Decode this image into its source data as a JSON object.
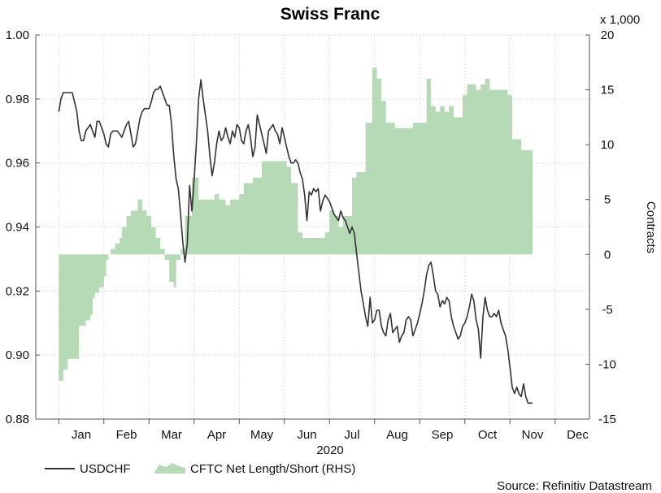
{
  "chart_data": {
    "type": "line",
    "title": "Swiss Franc",
    "year_label": "2020",
    "right_axis_multiplier": "x 1,000",
    "right_axis_label": "Contracts",
    "source": "Source: Refinitiv Datastream",
    "month_labels": [
      "Jan",
      "Feb",
      "Mar",
      "Apr",
      "May",
      "Jun",
      "Jul",
      "Aug",
      "Sep",
      "Oct",
      "Nov",
      "Dec"
    ],
    "left_ticks": [
      "0.88",
      "0.90",
      "0.92",
      "0.94",
      "0.96",
      "0.98",
      "1.00"
    ],
    "right_ticks": [
      "-15",
      "-10",
      "-5",
      "0",
      "5",
      "10",
      "15",
      "20"
    ],
    "left_ylim": [
      0.88,
      1.0
    ],
    "right_ylim": [
      -15,
      20
    ],
    "grid": true,
    "legend_position": "bottom-left",
    "series": [
      {
        "name": "USDCHF",
        "axis": "left",
        "color": "#333333",
        "x_unit": "month_index",
        "points": [
          [
            -0.5,
            0.976
          ],
          [
            -0.45,
            0.98
          ],
          [
            -0.4,
            0.982
          ],
          [
            -0.3,
            0.982
          ],
          [
            -0.2,
            0.982
          ],
          [
            -0.1,
            0.976
          ],
          [
            -0.05,
            0.97
          ],
          [
            0.0,
            0.967
          ],
          [
            0.05,
            0.967
          ],
          [
            0.1,
            0.97
          ],
          [
            0.2,
            0.972
          ],
          [
            0.25,
            0.97
          ],
          [
            0.3,
            0.968
          ],
          [
            0.35,
            0.973
          ],
          [
            0.4,
            0.973
          ],
          [
            0.45,
            0.971
          ],
          [
            0.5,
            0.969
          ],
          [
            0.55,
            0.966
          ],
          [
            0.6,
            0.965
          ],
          [
            0.65,
            0.969
          ],
          [
            0.7,
            0.97
          ],
          [
            0.8,
            0.97
          ],
          [
            0.85,
            0.969
          ],
          [
            0.9,
            0.968
          ],
          [
            0.95,
            0.97
          ],
          [
            1.0,
            0.972
          ],
          [
            1.05,
            0.973
          ],
          [
            1.1,
            0.969
          ],
          [
            1.15,
            0.965
          ],
          [
            1.2,
            0.966
          ],
          [
            1.25,
            0.97
          ],
          [
            1.3,
            0.974
          ],
          [
            1.35,
            0.976
          ],
          [
            1.4,
            0.977
          ],
          [
            1.5,
            0.977
          ],
          [
            1.55,
            0.979
          ],
          [
            1.6,
            0.982
          ],
          [
            1.65,
            0.983
          ],
          [
            1.7,
            0.983
          ],
          [
            1.75,
            0.984
          ],
          [
            1.8,
            0.982
          ],
          [
            1.85,
            0.98
          ],
          [
            1.9,
            0.978
          ],
          [
            1.95,
            0.978
          ],
          [
            2.0,
            0.972
          ],
          [
            2.05,
            0.962
          ],
          [
            2.1,
            0.955
          ],
          [
            2.15,
            0.952
          ],
          [
            2.2,
            0.944
          ],
          [
            2.25,
            0.935
          ],
          [
            2.3,
            0.929
          ],
          [
            2.35,
            0.935
          ],
          [
            2.4,
            0.953
          ],
          [
            2.45,
            0.945
          ],
          [
            2.5,
            0.955
          ],
          [
            2.55,
            0.966
          ],
          [
            2.6,
            0.98
          ],
          [
            2.65,
            0.986
          ],
          [
            2.7,
            0.98
          ],
          [
            2.75,
            0.975
          ],
          [
            2.8,
            0.97
          ],
          [
            2.85,
            0.962
          ],
          [
            2.9,
            0.956
          ],
          [
            2.95,
            0.96
          ],
          [
            3.0,
            0.966
          ],
          [
            3.05,
            0.97
          ],
          [
            3.1,
            0.967
          ],
          [
            3.15,
            0.968
          ],
          [
            3.2,
            0.971
          ],
          [
            3.25,
            0.968
          ],
          [
            3.3,
            0.966
          ],
          [
            3.35,
            0.97
          ],
          [
            3.4,
            0.968
          ],
          [
            3.45,
            0.972
          ],
          [
            3.5,
            0.971
          ],
          [
            3.55,
            0.967
          ],
          [
            3.6,
            0.966
          ],
          [
            3.65,
            0.97
          ],
          [
            3.7,
            0.972
          ],
          [
            3.75,
            0.968
          ],
          [
            3.8,
            0.962
          ],
          [
            3.85,
            0.965
          ],
          [
            3.9,
            0.975
          ],
          [
            3.95,
            0.972
          ],
          [
            4.0,
            0.969
          ],
          [
            4.05,
            0.966
          ],
          [
            4.1,
            0.963
          ],
          [
            4.15,
            0.97
          ],
          [
            4.2,
            0.971
          ],
          [
            4.25,
            0.972
          ],
          [
            4.3,
            0.97
          ],
          [
            4.35,
            0.969
          ],
          [
            4.4,
            0.966
          ],
          [
            4.45,
            0.971
          ],
          [
            4.5,
            0.968
          ],
          [
            4.55,
            0.965
          ],
          [
            4.6,
            0.962
          ],
          [
            4.65,
            0.96
          ],
          [
            4.7,
            0.96
          ],
          [
            4.75,
            0.961
          ],
          [
            4.8,
            0.96
          ],
          [
            4.85,
            0.957
          ],
          [
            4.9,
            0.955
          ],
          [
            4.95,
            0.95
          ],
          [
            5.0,
            0.942
          ],
          [
            5.05,
            0.951
          ],
          [
            5.1,
            0.95
          ],
          [
            5.15,
            0.952
          ],
          [
            5.2,
            0.951
          ],
          [
            5.25,
            0.952
          ],
          [
            5.3,
            0.945
          ],
          [
            5.35,
            0.948
          ],
          [
            5.4,
            0.95
          ],
          [
            5.45,
            0.949
          ],
          [
            5.5,
            0.948
          ],
          [
            5.55,
            0.946
          ],
          [
            5.6,
            0.944
          ],
          [
            5.65,
            0.943
          ],
          [
            5.7,
            0.942
          ],
          [
            5.75,
            0.945
          ],
          [
            5.8,
            0.943
          ],
          [
            5.85,
            0.942
          ],
          [
            5.9,
            0.94
          ],
          [
            5.95,
            0.938
          ],
          [
            6.0,
            0.94
          ],
          [
            6.05,
            0.938
          ],
          [
            6.1,
            0.932
          ],
          [
            6.15,
            0.926
          ],
          [
            6.2,
            0.92
          ],
          [
            6.25,
            0.916
          ],
          [
            6.3,
            0.912
          ],
          [
            6.35,
            0.909
          ],
          [
            6.4,
            0.918
          ],
          [
            6.45,
            0.91
          ],
          [
            6.5,
            0.911
          ],
          [
            6.55,
            0.914
          ],
          [
            6.6,
            0.914
          ],
          [
            6.65,
            0.909
          ],
          [
            6.7,
            0.907
          ],
          [
            6.75,
            0.906
          ],
          [
            6.8,
            0.911
          ],
          [
            6.85,
            0.913
          ],
          [
            6.9,
            0.907
          ],
          [
            6.95,
            0.908
          ],
          [
            7.0,
            0.909
          ],
          [
            7.05,
            0.904
          ],
          [
            7.1,
            0.906
          ],
          [
            7.15,
            0.907
          ],
          [
            7.2,
            0.911
          ],
          [
            7.25,
            0.912
          ],
          [
            7.3,
            0.911
          ],
          [
            7.35,
            0.906
          ],
          [
            7.4,
            0.908
          ],
          [
            7.45,
            0.91
          ],
          [
            7.5,
            0.913
          ],
          [
            7.55,
            0.916
          ],
          [
            7.6,
            0.92
          ],
          [
            7.65,
            0.925
          ],
          [
            7.7,
            0.928
          ],
          [
            7.75,
            0.929
          ],
          [
            7.8,
            0.925
          ],
          [
            7.85,
            0.92
          ],
          [
            7.9,
            0.919
          ],
          [
            7.95,
            0.915
          ],
          [
            8.0,
            0.917
          ],
          [
            8.05,
            0.916
          ],
          [
            8.1,
            0.918
          ],
          [
            8.15,
            0.917
          ],
          [
            8.2,
            0.912
          ],
          [
            8.25,
            0.909
          ],
          [
            8.3,
            0.907
          ],
          [
            8.35,
            0.905
          ],
          [
            8.4,
            0.906
          ],
          [
            8.45,
            0.909
          ],
          [
            8.5,
            0.91
          ],
          [
            8.55,
            0.912
          ],
          [
            8.6,
            0.915
          ],
          [
            8.65,
            0.919
          ],
          [
            8.7,
            0.917
          ],
          [
            8.75,
            0.911
          ],
          [
            8.8,
            0.908
          ],
          [
            8.85,
            0.899
          ],
          [
            8.9,
            0.912
          ],
          [
            8.95,
            0.918
          ],
          [
            9.0,
            0.914
          ],
          [
            9.05,
            0.912
          ],
          [
            9.1,
            0.912
          ],
          [
            9.15,
            0.913
          ],
          [
            9.2,
            0.912
          ],
          [
            9.25,
            0.914
          ],
          [
            9.3,
            0.91
          ],
          [
            9.35,
            0.908
          ],
          [
            9.4,
            0.906
          ],
          [
            9.45,
            0.902
          ],
          [
            9.5,
            0.896
          ],
          [
            9.55,
            0.89
          ],
          [
            9.6,
            0.888
          ],
          [
            9.65,
            0.89
          ],
          [
            9.7,
            0.888
          ],
          [
            9.75,
            0.887
          ],
          [
            9.8,
            0.891
          ],
          [
            9.85,
            0.887
          ],
          [
            9.9,
            0.885
          ],
          [
            9.95,
            0.885
          ],
          [
            10.0,
            0.885
          ]
        ]
      },
      {
        "name": "CFTC Net Length/Short (RHS)",
        "axis": "right",
        "color": "#b6d9b6",
        "x_unit": "month_index",
        "points": [
          [
            -0.5,
            -11.5
          ],
          [
            -0.4,
            -10.5
          ],
          [
            -0.3,
            -9.5
          ],
          [
            -0.1,
            -9.5
          ],
          [
            -0.05,
            -6.5
          ],
          [
            0.0,
            -6.5
          ],
          [
            0.1,
            -6.0
          ],
          [
            0.2,
            -5.5
          ],
          [
            0.25,
            -4.0
          ],
          [
            0.3,
            -3.5
          ],
          [
            0.4,
            -3.0
          ],
          [
            0.5,
            -2.0
          ],
          [
            0.55,
            -0.5
          ],
          [
            0.6,
            0.0
          ],
          [
            0.65,
            0.5
          ],
          [
            0.75,
            1.0
          ],
          [
            0.85,
            1.5
          ],
          [
            0.9,
            2.5
          ],
          [
            1.0,
            3.5
          ],
          [
            1.1,
            4.0
          ],
          [
            1.25,
            5.0
          ],
          [
            1.35,
            4.0
          ],
          [
            1.45,
            3.5
          ],
          [
            1.55,
            2.5
          ],
          [
            1.65,
            1.5
          ],
          [
            1.75,
            0.5
          ],
          [
            1.85,
            -0.5
          ],
          [
            1.95,
            -2.5
          ],
          [
            2.05,
            -3.0
          ],
          [
            2.1,
            -0.5
          ],
          [
            2.2,
            0.5
          ],
          [
            2.3,
            3.5
          ],
          [
            2.45,
            7.0
          ],
          [
            2.6,
            5.0
          ],
          [
            2.75,
            5.0
          ],
          [
            2.85,
            5.0
          ],
          [
            2.95,
            5.5
          ],
          [
            3.05,
            5.0
          ],
          [
            3.2,
            4.5
          ],
          [
            3.3,
            5.0
          ],
          [
            3.4,
            5.0
          ],
          [
            3.5,
            5.5
          ],
          [
            3.6,
            6.5
          ],
          [
            3.7,
            6.5
          ],
          [
            3.8,
            7.0
          ],
          [
            3.9,
            7.0
          ],
          [
            4.0,
            8.5
          ],
          [
            4.15,
            8.5
          ],
          [
            4.3,
            8.5
          ],
          [
            4.45,
            8.5
          ],
          [
            4.55,
            8.0
          ],
          [
            4.65,
            6.5
          ],
          [
            4.75,
            6.5
          ],
          [
            4.8,
            2.0
          ],
          [
            4.9,
            1.5
          ],
          [
            5.0,
            1.5
          ],
          [
            5.1,
            1.5
          ],
          [
            5.2,
            1.5
          ],
          [
            5.3,
            1.5
          ],
          [
            5.4,
            2.0
          ],
          [
            5.5,
            4.0
          ],
          [
            5.6,
            3.5
          ],
          [
            5.7,
            2.5
          ],
          [
            5.8,
            3.5
          ],
          [
            5.9,
            3.5
          ],
          [
            6.0,
            7.0
          ],
          [
            6.1,
            7.5
          ],
          [
            6.2,
            7.5
          ],
          [
            6.25,
            7.5
          ],
          [
            6.3,
            12.0
          ],
          [
            6.4,
            12.0
          ],
          [
            6.45,
            17.0
          ],
          [
            6.55,
            16.0
          ],
          [
            6.65,
            14.0
          ],
          [
            6.75,
            12.0
          ],
          [
            6.85,
            12.0
          ],
          [
            6.95,
            11.5
          ],
          [
            7.05,
            11.5
          ],
          [
            7.2,
            11.5
          ],
          [
            7.35,
            12.0
          ],
          [
            7.5,
            12.0
          ],
          [
            7.65,
            16.0
          ],
          [
            7.75,
            13.5
          ],
          [
            7.85,
            13.0
          ],
          [
            7.95,
            13.5
          ],
          [
            8.05,
            13.0
          ],
          [
            8.15,
            13.5
          ],
          [
            8.25,
            12.5
          ],
          [
            8.35,
            12.5
          ],
          [
            8.45,
            14.5
          ],
          [
            8.55,
            15.5
          ],
          [
            8.65,
            15.5
          ],
          [
            8.75,
            15.0
          ],
          [
            8.85,
            15.5
          ],
          [
            8.95,
            16.0
          ],
          [
            9.05,
            15.0
          ],
          [
            9.15,
            15.0
          ],
          [
            9.25,
            15.0
          ],
          [
            9.35,
            15.0
          ],
          [
            9.45,
            14.5
          ],
          [
            9.55,
            10.5
          ],
          [
            9.65,
            10.5
          ],
          [
            9.75,
            9.5
          ],
          [
            9.85,
            9.5
          ],
          [
            9.95,
            9.5
          ],
          [
            10.0,
            9.5
          ]
        ]
      }
    ]
  }
}
